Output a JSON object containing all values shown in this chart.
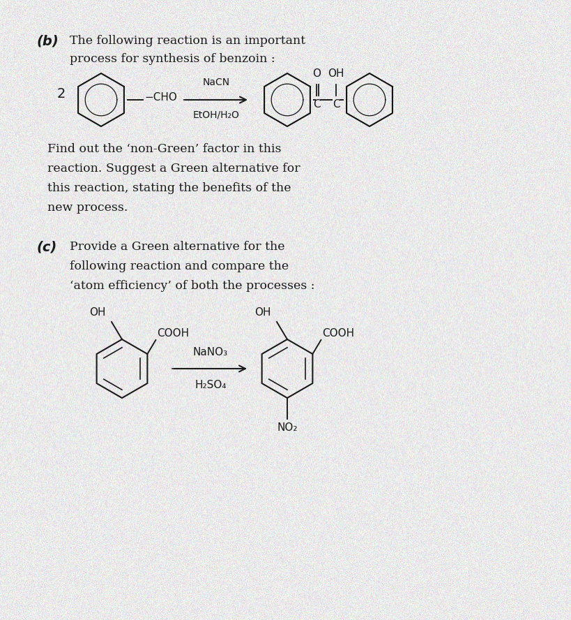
{
  "background_color": "#e8e4dc",
  "text_color": "#1a1a1a",
  "noise_seed": 42,
  "b_line1": "The following reaction is an important",
  "b_line2": "process for synthesis of benzoin :",
  "find_line1": "Find out the ‘non-Green’ factor in this",
  "find_line2": "reaction. Suggest a Green alternative for",
  "find_line3": "this reaction, stating the benefits of the",
  "find_line4": "new process.",
  "c_line1": "Provide a Green alternative for the",
  "c_line2": "following reaction and compare the",
  "c_line3": "‘atom efficiency’ of both the processes :"
}
